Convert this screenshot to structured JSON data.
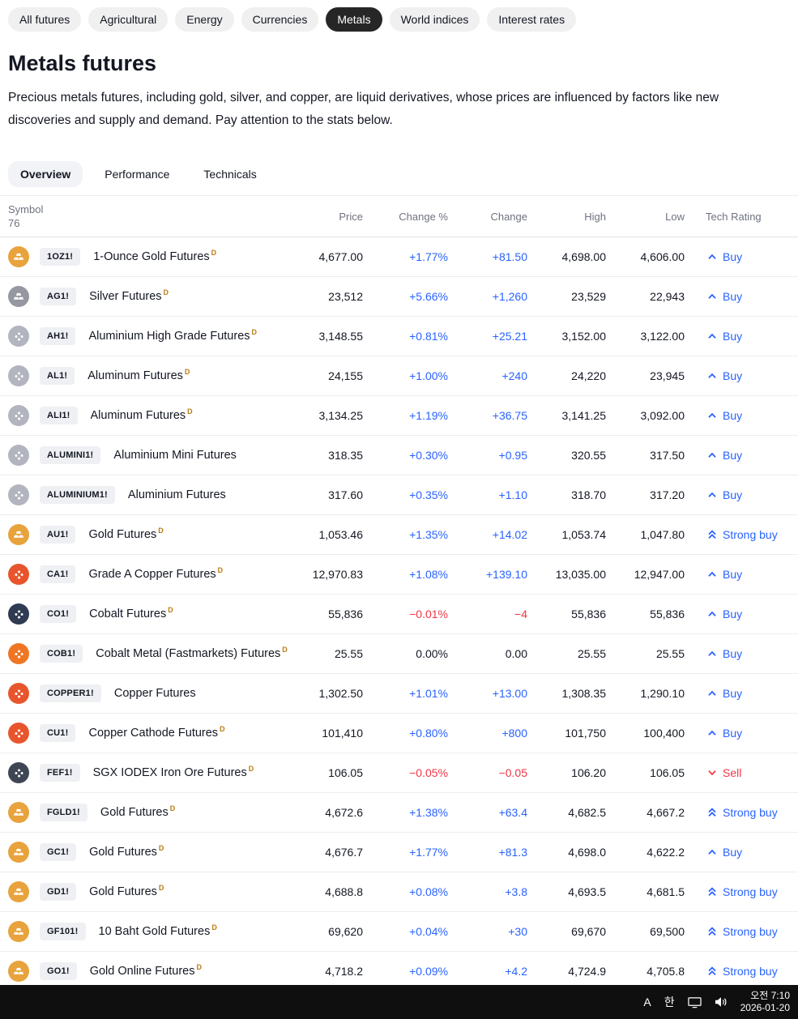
{
  "colors": {
    "positive": "#2962FF",
    "negative": "#F23645",
    "neutral_text": "#131722",
    "chip_active_bg": "#262626",
    "rating_buy": "#2962FF",
    "rating_sell": "#F23645",
    "taskbar_bg": "#0f0f0f"
  },
  "icons": {
    "bars": "stacked-gold-ingots",
    "dots": "molecule-dots",
    "buy": "chevron-up",
    "strong_buy": "double-chevron-up",
    "sell": "chevron-down",
    "network-icon": "monitor-shape",
    "volume-icon": "speaker-with-waves"
  },
  "filters": {
    "items": [
      {
        "label": "All futures"
      },
      {
        "label": "Agricultural"
      },
      {
        "label": "Energy"
      },
      {
        "label": "Currencies"
      },
      {
        "label": "Metals"
      },
      {
        "label": "World indices"
      },
      {
        "label": "Interest rates"
      }
    ],
    "active_label": "Metals"
  },
  "header": {
    "title": "Metals futures",
    "description": "Precious metals futures, including gold, silver, and copper, are liquid derivatives, whose prices are influenced by factors like new discoveries and supply and demand. Pay attention to the stats below."
  },
  "tabs": [
    {
      "label": "Overview"
    },
    {
      "label": "Performance"
    },
    {
      "label": "Technicals"
    }
  ],
  "table": {
    "symbol_count": "76",
    "delayed_flag_label": "D",
    "columns": [
      "Symbol",
      "Price",
      "Change %",
      "Change",
      "High",
      "Low",
      "Tech Rating"
    ],
    "rows": [
      {
        "symbol": "1OZ1!",
        "name": "1-Ounce Gold Futures",
        "delayed": true,
        "price": "4,677.00",
        "change_pct": "+1.77%",
        "change": "+81.50",
        "high": "4,698.00",
        "low": "4,606.00",
        "rating": "Buy",
        "rating_type": "buy",
        "trend": "up",
        "icon_color": "#E8A33D",
        "icon_glyph": "bars"
      },
      {
        "symbol": "AG1!",
        "name": "Silver Futures",
        "delayed": true,
        "price": "23,512",
        "change_pct": "+5.66%",
        "change": "+1,260",
        "high": "23,529",
        "low": "22,943",
        "rating": "Buy",
        "rating_type": "buy",
        "trend": "up",
        "icon_color": "#9598A1",
        "icon_glyph": "bars"
      },
      {
        "symbol": "AH1!",
        "name": "Aluminium High Grade Futures",
        "delayed": true,
        "price": "3,148.55",
        "change_pct": "+0.81%",
        "change": "+25.21",
        "high": "3,152.00",
        "low": "3,122.00",
        "rating": "Buy",
        "rating_type": "buy",
        "trend": "up",
        "icon_color": "#B2B5BE",
        "icon_glyph": "dots"
      },
      {
        "symbol": "AL1!",
        "name": "Aluminum Futures",
        "delayed": true,
        "price": "24,155",
        "change_pct": "+1.00%",
        "change": "+240",
        "high": "24,220",
        "low": "23,945",
        "rating": "Buy",
        "rating_type": "buy",
        "trend": "up",
        "icon_color": "#B2B5BE",
        "icon_glyph": "dots"
      },
      {
        "symbol": "ALI1!",
        "name": "Aluminum Futures",
        "delayed": true,
        "price": "3,134.25",
        "change_pct": "+1.19%",
        "change": "+36.75",
        "high": "3,141.25",
        "low": "3,092.00",
        "rating": "Buy",
        "rating_type": "buy",
        "trend": "up",
        "icon_color": "#B2B5BE",
        "icon_glyph": "dots"
      },
      {
        "symbol": "ALUMINI1!",
        "name": "Aluminium Mini Futures",
        "delayed": false,
        "price": "318.35",
        "change_pct": "+0.30%",
        "change": "+0.95",
        "high": "320.55",
        "low": "317.50",
        "rating": "Buy",
        "rating_type": "buy",
        "trend": "up",
        "icon_color": "#B2B5BE",
        "icon_glyph": "dots"
      },
      {
        "symbol": "ALUMINIUM1!",
        "name": "Aluminium Futures",
        "delayed": false,
        "price": "317.60",
        "change_pct": "+0.35%",
        "change": "+1.10",
        "high": "318.70",
        "low": "317.20",
        "rating": "Buy",
        "rating_type": "buy",
        "trend": "up",
        "icon_color": "#B2B5BE",
        "icon_glyph": "dots"
      },
      {
        "symbol": "AU1!",
        "name": "Gold Futures",
        "delayed": true,
        "price": "1,053.46",
        "change_pct": "+1.35%",
        "change": "+14.02",
        "high": "1,053.74",
        "low": "1,047.80",
        "rating": "Strong buy",
        "rating_type": "strong_buy",
        "trend": "up",
        "icon_color": "#E8A33D",
        "icon_glyph": "bars"
      },
      {
        "symbol": "CA1!",
        "name": "Grade A Copper Futures",
        "delayed": true,
        "price": "12,970.83",
        "change_pct": "+1.08%",
        "change": "+139.10",
        "high": "13,035.00",
        "low": "12,947.00",
        "rating": "Buy",
        "rating_type": "buy",
        "trend": "up",
        "icon_color": "#E8552D",
        "icon_glyph": "dots"
      },
      {
        "symbol": "CO1!",
        "name": "Cobalt Futures",
        "delayed": true,
        "price": "55,836",
        "change_pct": "−0.01%",
        "change": "−4",
        "high": "55,836",
        "low": "55,836",
        "rating": "Buy",
        "rating_type": "buy",
        "trend": "down",
        "icon_color": "#2F3B52",
        "icon_glyph": "dots"
      },
      {
        "symbol": "COB1!",
        "name": "Cobalt Metal (Fastmarkets) Futures",
        "delayed": true,
        "price": "25.55",
        "change_pct": "0.00%",
        "change": "0.00",
        "high": "25.55",
        "low": "25.55",
        "rating": "Buy",
        "rating_type": "buy",
        "trend": "flat",
        "icon_color": "#EF7622",
        "icon_glyph": "dots"
      },
      {
        "symbol": "COPPER1!",
        "name": "Copper Futures",
        "delayed": false,
        "price": "1,302.50",
        "change_pct": "+1.01%",
        "change": "+13.00",
        "high": "1,308.35",
        "low": "1,290.10",
        "rating": "Buy",
        "rating_type": "buy",
        "trend": "up",
        "icon_color": "#E8552D",
        "icon_glyph": "dots"
      },
      {
        "symbol": "CU1!",
        "name": "Copper Cathode Futures",
        "delayed": true,
        "price": "101,410",
        "change_pct": "+0.80%",
        "change": "+800",
        "high": "101,750",
        "low": "100,400",
        "rating": "Buy",
        "rating_type": "buy",
        "trend": "up",
        "icon_color": "#E8552D",
        "icon_glyph": "dots"
      },
      {
        "symbol": "FEF1!",
        "name": "SGX IODEX Iron Ore Futures",
        "delayed": true,
        "price": "106.05",
        "change_pct": "−0.05%",
        "change": "−0.05",
        "high": "106.20",
        "low": "106.05",
        "rating": "Sell",
        "rating_type": "sell",
        "trend": "down",
        "icon_color": "#3E4554",
        "icon_glyph": "dots"
      },
      {
        "symbol": "FGLD1!",
        "name": "Gold Futures",
        "delayed": true,
        "price": "4,672.6",
        "change_pct": "+1.38%",
        "change": "+63.4",
        "high": "4,682.5",
        "low": "4,667.2",
        "rating": "Strong buy",
        "rating_type": "strong_buy",
        "trend": "up",
        "icon_color": "#E8A33D",
        "icon_glyph": "bars"
      },
      {
        "symbol": "GC1!",
        "name": "Gold Futures",
        "delayed": true,
        "price": "4,676.7",
        "change_pct": "+1.77%",
        "change": "+81.3",
        "high": "4,698.0",
        "low": "4,622.2",
        "rating": "Buy",
        "rating_type": "buy",
        "trend": "up",
        "icon_color": "#E8A33D",
        "icon_glyph": "bars"
      },
      {
        "symbol": "GD1!",
        "name": "Gold Futures",
        "delayed": true,
        "price": "4,688.8",
        "change_pct": "+0.08%",
        "change": "+3.8",
        "high": "4,693.5",
        "low": "4,681.5",
        "rating": "Strong buy",
        "rating_type": "strong_buy",
        "trend": "up",
        "icon_color": "#E8A33D",
        "icon_glyph": "bars"
      },
      {
        "symbol": "GF101!",
        "name": "10 Baht Gold Futures",
        "delayed": true,
        "price": "69,620",
        "change_pct": "+0.04%",
        "change": "+30",
        "high": "69,670",
        "low": "69,500",
        "rating": "Strong buy",
        "rating_type": "strong_buy",
        "trend": "up",
        "icon_color": "#E8A33D",
        "icon_glyph": "bars"
      },
      {
        "symbol": "GO1!",
        "name": "Gold Online Futures",
        "delayed": true,
        "price": "4,718.2",
        "change_pct": "+0.09%",
        "change": "+4.2",
        "high": "4,724.9",
        "low": "4,705.8",
        "rating": "Strong buy",
        "rating_type": "strong_buy",
        "trend": "up",
        "icon_color": "#E8A33D",
        "icon_glyph": "bars"
      }
    ]
  },
  "taskbar": {
    "ime_letter": "A",
    "ime_lang": "한",
    "time": "오전 7:10",
    "date": "2026-01-20"
  }
}
